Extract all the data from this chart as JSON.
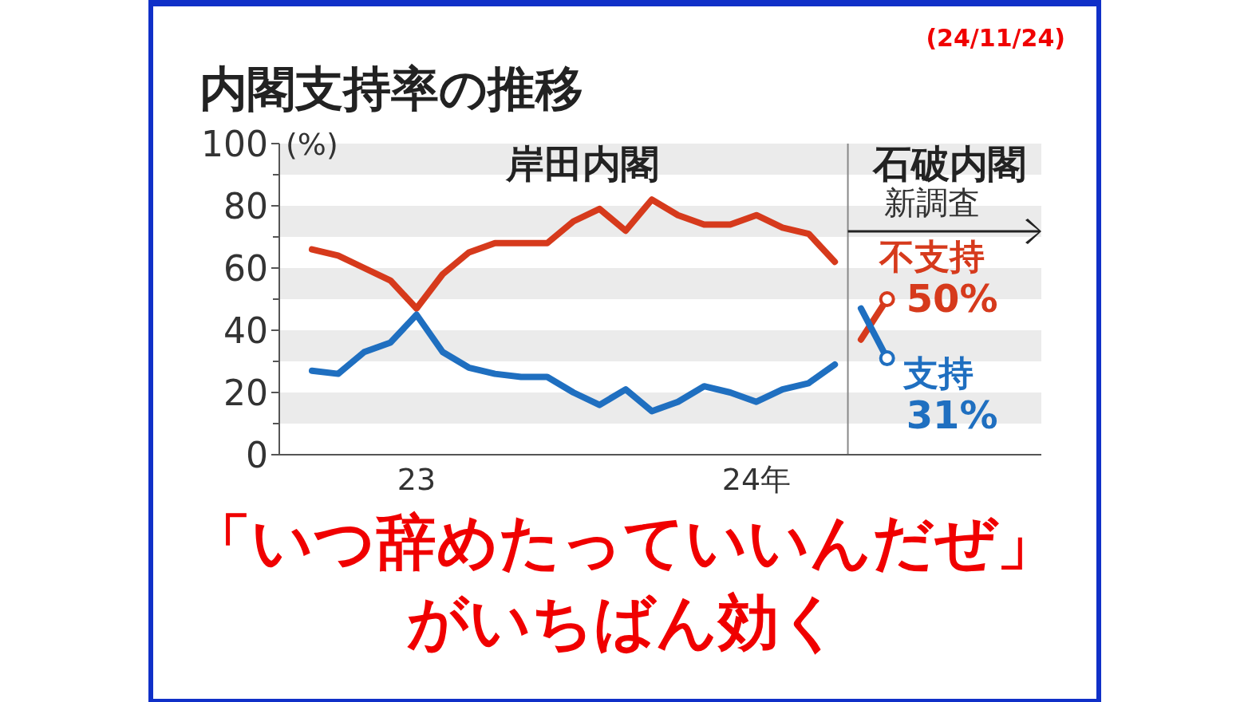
{
  "chart_data": {
    "type": "line",
    "title": "内閣支持率の推移",
    "ylabel": "(%)",
    "annotations": [
      "(24/11/24)",
      "岸田内閣",
      "石破内閣",
      "新調査",
      "「いつ辞めたっていいんだぜ」がいちばん効く"
    ],
    "categories": [
      null,
      null,
      null,
      null,
      "23",
      null,
      null,
      null,
      null,
      null,
      null,
      null,
      null,
      null,
      null,
      null,
      null,
      "24年",
      null,
      null,
      null,
      null,
      null
    ],
    "ylim": [
      0,
      100
    ],
    "yticks": [
      0,
      20,
      40,
      60,
      80,
      100
    ],
    "bands": [
      {
        "axis": "y",
        "from": 10,
        "to": 20,
        "color": "#ebebeb"
      },
      {
        "axis": "y",
        "from": 30,
        "to": 40,
        "color": "#ebebeb"
      },
      {
        "axis": "y",
        "from": 50,
        "to": 60,
        "color": "#ebebeb"
      },
      {
        "axis": "y",
        "from": 70,
        "to": 80,
        "color": "#ebebeb"
      },
      {
        "axis": "y",
        "from": 90,
        "to": 100,
        "color": "#ebebeb"
      }
    ],
    "series": [
      {
        "color": "#d63a1c",
        "values": [
          66,
          64,
          60,
          56,
          47,
          58,
          65,
          68,
          68,
          68,
          75,
          79,
          72,
          82,
          77,
          74,
          74,
          77,
          73,
          71,
          62,
          null,
          null
        ]
      },
      {
        "color": "#1f6fc0",
        "values": [
          27,
          26,
          33,
          36,
          45,
          33,
          28,
          26,
          25,
          25,
          20,
          16,
          21,
          14,
          17,
          22,
          20,
          17,
          21,
          23,
          29,
          null,
          null
        ]
      },
      {
        "name": "不支持",
        "color": "#d63a1c",
        "values": [
          null,
          null,
          null,
          null,
          null,
          null,
          null,
          null,
          null,
          null,
          null,
          null,
          null,
          null,
          null,
          null,
          null,
          null,
          null,
          null,
          null,
          37,
          50
        ],
        "value_labels": [
          null,
          null,
          null,
          null,
          null,
          null,
          null,
          null,
          null,
          null,
          null,
          null,
          null,
          null,
          null,
          null,
          null,
          null,
          null,
          null,
          null,
          null,
          "50%"
        ]
      },
      {
        "name": "支持",
        "color": "#1f6fc0",
        "values": [
          null,
          null,
          null,
          null,
          null,
          null,
          null,
          null,
          null,
          null,
          null,
          null,
          null,
          null,
          null,
          null,
          null,
          null,
          null,
          null,
          null,
          47,
          31
        ],
        "value_labels": [
          null,
          null,
          null,
          null,
          null,
          null,
          null,
          null,
          null,
          null,
          null,
          null,
          null,
          null,
          null,
          null,
          null,
          null,
          null,
          null,
          null,
          null,
          "31%"
        ]
      },
      {
        "type": "scatter",
        "marker": "circle",
        "values": [
          null,
          null,
          null,
          null,
          null,
          null,
          null,
          null,
          null,
          null,
          null,
          null,
          null,
          null,
          null,
          null,
          null,
          null,
          null,
          null,
          null,
          null,
          50
        ],
        "colors": [
          null,
          null,
          null,
          null,
          null,
          null,
          null,
          null,
          null,
          null,
          null,
          null,
          null,
          null,
          null,
          null,
          null,
          null,
          null,
          null,
          null,
          null,
          "#d63a1c"
        ]
      },
      {
        "type": "scatter",
        "marker": "circle",
        "values": [
          null,
          null,
          null,
          null,
          null,
          null,
          null,
          null,
          null,
          null,
          null,
          null,
          null,
          null,
          null,
          null,
          null,
          null,
          null,
          null,
          null,
          null,
          31
        ],
        "colors": [
          null,
          null,
          null,
          null,
          null,
          null,
          null,
          null,
          null,
          null,
          null,
          null,
          null,
          null,
          null,
          null,
          null,
          null,
          null,
          null,
          null,
          null,
          "#1f6fc0"
        ]
      }
    ]
  }
}
